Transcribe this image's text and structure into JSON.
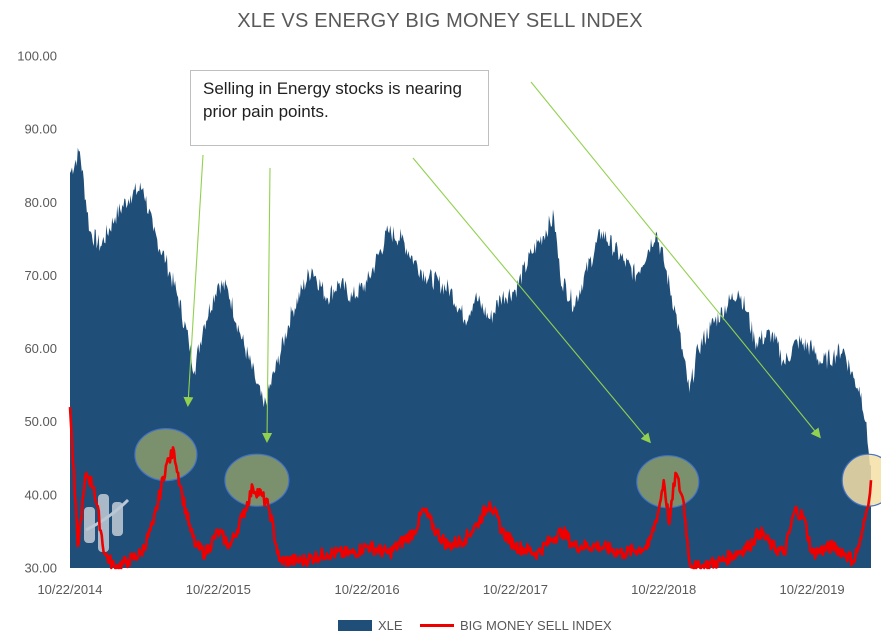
{
  "chart_data": {
    "type": "area",
    "title": "XLE VS ENERGY BIG MONEY SELL INDEX",
    "xlabel": "",
    "ylabel": "",
    "ylim": [
      30,
      100
    ],
    "y_ticks": [
      "100.00",
      "90.00",
      "80.00",
      "70.00",
      "60.00",
      "50.00",
      "40.00",
      "30.00"
    ],
    "x_ticks": [
      "10/22/2014",
      "10/22/2015",
      "10/22/2016",
      "10/22/2017",
      "10/22/2018",
      "10/22/2019"
    ],
    "x_range": [
      "2014-10-22",
      "2020-03-15"
    ],
    "legend_position": "bottom",
    "grid": false,
    "series": [
      {
        "name": "XLE",
        "style": "area",
        "color": "#1f4e79",
        "x": [
          "2014-10-22",
          "2014-11-15",
          "2014-12-10",
          "2015-01-05",
          "2015-02-10",
          "2015-03-20",
          "2015-04-20",
          "2015-05-15",
          "2015-06-15",
          "2015-07-15",
          "2015-08-10",
          "2015-08-24",
          "2015-09-15",
          "2015-10-22",
          "2015-11-15",
          "2015-12-15",
          "2016-01-20",
          "2016-02-11",
          "2016-03-15",
          "2016-04-20",
          "2016-06-08",
          "2016-07-15",
          "2016-08-15",
          "2016-09-15",
          "2016-10-22",
          "2016-12-13",
          "2017-01-15",
          "2017-02-15",
          "2017-03-15",
          "2017-05-15",
          "2017-06-20",
          "2017-07-15",
          "2017-08-21",
          "2017-09-15",
          "2017-10-22",
          "2017-12-01",
          "2018-01-25",
          "2018-02-09",
          "2018-03-15",
          "2018-05-22",
          "2018-07-15",
          "2018-08-15",
          "2018-10-03",
          "2018-10-22",
          "2018-11-20",
          "2018-12-24",
          "2019-01-15",
          "2019-02-15",
          "2019-04-23",
          "2019-05-15",
          "2019-06-03",
          "2019-07-15",
          "2019-08-15",
          "2019-09-16",
          "2019-10-22",
          "2019-11-15",
          "2019-12-13",
          "2020-01-06",
          "2020-02-01",
          "2020-02-20",
          "2020-03-01",
          "2020-03-09",
          "2020-03-15"
        ],
        "values": [
          84,
          87,
          76,
          74,
          78,
          81,
          82,
          76,
          72,
          67,
          61,
          57,
          63,
          69,
          68,
          62,
          56,
          52,
          58,
          65,
          71,
          67,
          69,
          67,
          69,
          76,
          75,
          72,
          70,
          68,
          64,
          67,
          64,
          67,
          68,
          73,
          78,
          70,
          66,
          76,
          72,
          70,
          76,
          72,
          65,
          54,
          60,
          63,
          68,
          65,
          61,
          62,
          58,
          61,
          60,
          58,
          59,
          60,
          56,
          54,
          50,
          46,
          44
        ]
      },
      {
        "name": "BIG MONEY SELL INDEX",
        "style": "line",
        "color": "#ee0000",
        "x": [
          "2014-10-22",
          "2014-11-10",
          "2014-12-01",
          "2014-12-20",
          "2015-01-15",
          "2015-02-10",
          "2015-03-15",
          "2015-04-15",
          "2015-05-15",
          "2015-06-15",
          "2015-07-05",
          "2015-07-25",
          "2015-08-15",
          "2015-08-28",
          "2015-09-20",
          "2015-10-22",
          "2015-11-20",
          "2015-12-20",
          "2016-01-15",
          "2016-02-05",
          "2016-02-25",
          "2016-03-20",
          "2016-05-15",
          "2016-07-15",
          "2016-09-15",
          "2016-10-22",
          "2016-12-15",
          "2017-02-15",
          "2017-03-10",
          "2017-04-10",
          "2017-05-10",
          "2017-06-20",
          "2017-07-20",
          "2017-08-20",
          "2017-09-20",
          "2017-10-22",
          "2017-12-15",
          "2018-01-20",
          "2018-02-15",
          "2018-03-15",
          "2018-05-15",
          "2018-07-15",
          "2018-09-15",
          "2018-10-10",
          "2018-10-22",
          "2018-11-05",
          "2018-11-20",
          "2018-12-10",
          "2018-12-24",
          "2019-01-10",
          "2019-03-15",
          "2019-05-20",
          "2019-06-15",
          "2019-07-15",
          "2019-08-15",
          "2019-09-10",
          "2019-10-01",
          "2019-10-22",
          "2019-12-15",
          "2020-01-10",
          "2020-02-01",
          "2020-02-20",
          "2020-03-05",
          "2020-03-15"
        ],
        "values": [
          52,
          33,
          43,
          41,
          32,
          30,
          31,
          32,
          36,
          44,
          46,
          40,
          35,
          33,
          32,
          35,
          33,
          37,
          41,
          40,
          38,
          31,
          31,
          32,
          32,
          33,
          32,
          35,
          38,
          35,
          33,
          34,
          36,
          39,
          35,
          33,
          32,
          34,
          35,
          33,
          33,
          32,
          33,
          38,
          42,
          36,
          43,
          39,
          31,
          30,
          31,
          33,
          35,
          33,
          32,
          38,
          37,
          32,
          33,
          32,
          31,
          34,
          38,
          42
        ]
      }
    ],
    "annotations": [
      {
        "text": "Selling in Energy stocks is nearing prior pain points."
      }
    ]
  },
  "colors": {
    "xle_area": "#1f4e79",
    "sell_index_line": "#ee0000",
    "arrow": "#92d050",
    "highlight_circle": "#92a26a",
    "highlight_circle_last": "#f5dfa6"
  }
}
